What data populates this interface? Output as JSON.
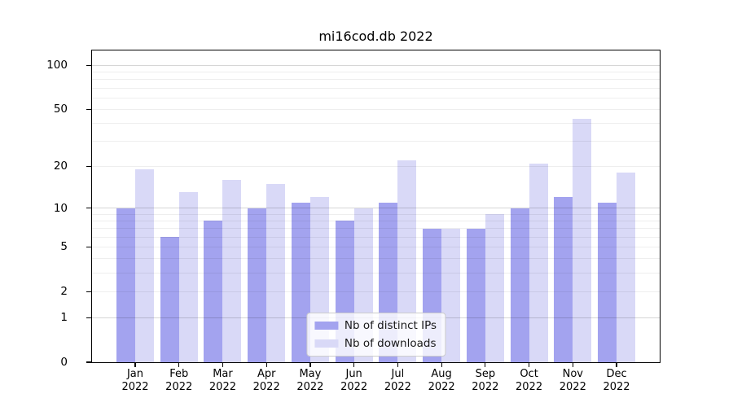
{
  "title": "mi16cod.db 2022",
  "chart_data": {
    "type": "bar",
    "title": "mi16cod.db 2022",
    "categories": [
      "Jan",
      "Feb",
      "Mar",
      "Apr",
      "May",
      "Jun",
      "Jul",
      "Aug",
      "Sep",
      "Oct",
      "Nov",
      "Dec"
    ],
    "year_label": "2022",
    "series": [
      {
        "name": "Nb of distinct IPs",
        "color": "#a3a3ef",
        "values": [
          10,
          6,
          8,
          10,
          11,
          8,
          11,
          7,
          7,
          10,
          12,
          11
        ]
      },
      {
        "name": "Nb of downloads",
        "color": "#d9d9f7",
        "values": [
          19,
          13,
          16,
          15,
          12,
          10,
          22,
          7,
          9,
          21,
          43,
          18
        ]
      }
    ],
    "yscale": "symlog-log1p",
    "ylim": [
      0,
      126
    ],
    "yticks": [
      0,
      1,
      2,
      5,
      10,
      20,
      50,
      100
    ],
    "gridlines_major": [
      1,
      10,
      100
    ],
    "gridlines_minor": [
      2,
      3,
      4,
      5,
      6,
      7,
      8,
      9,
      20,
      30,
      40,
      50,
      60,
      70,
      80,
      90
    ],
    "grid": true,
    "legend_position": "lower center"
  }
}
